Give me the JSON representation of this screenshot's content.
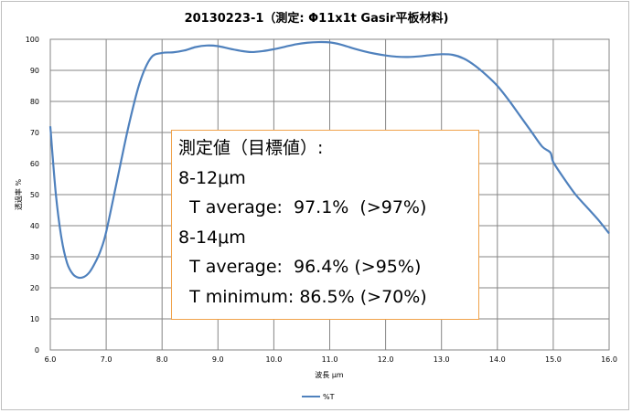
{
  "chart_data": {
    "type": "line",
    "title": "20130223-1（測定: Φ11x1t Gasir平板材料)",
    "xlabel": "波長   μm",
    "ylabel": "透過率   %",
    "xlim": [
      6.0,
      16.0
    ],
    "ylim": [
      0,
      100
    ],
    "x_ticks": [
      "6.0",
      "7.0",
      "8.0",
      "9.0",
      "10.0",
      "11.0",
      "12.0",
      "13.0",
      "14.0",
      "15.0",
      "16.0"
    ],
    "y_ticks": [
      "0",
      "10",
      "20",
      "30",
      "40",
      "50",
      "60",
      "70",
      "80",
      "90",
      "100"
    ],
    "grid": true,
    "legend_position": "bottom",
    "series": [
      {
        "name": "%T",
        "color": "#4f81bd",
        "points": [
          [
            6.0,
            72
          ],
          [
            6.1,
            50
          ],
          [
            6.2,
            36
          ],
          [
            6.3,
            28
          ],
          [
            6.4,
            24.5
          ],
          [
            6.5,
            23.3
          ],
          [
            6.6,
            23.5
          ],
          [
            6.7,
            25
          ],
          [
            6.8,
            28
          ],
          [
            6.9,
            32
          ],
          [
            7.0,
            38
          ],
          [
            7.2,
            55
          ],
          [
            7.4,
            72
          ],
          [
            7.6,
            86
          ],
          [
            7.8,
            94
          ],
          [
            8.0,
            95.6
          ],
          [
            8.2,
            95.8
          ],
          [
            8.4,
            96.4
          ],
          [
            8.6,
            97.5
          ],
          [
            8.8,
            98
          ],
          [
            9.0,
            97.8
          ],
          [
            9.2,
            97
          ],
          [
            9.4,
            96.3
          ],
          [
            9.6,
            95.9
          ],
          [
            9.8,
            96.2
          ],
          [
            10.0,
            96.8
          ],
          [
            10.2,
            97.6
          ],
          [
            10.4,
            98.4
          ],
          [
            10.6,
            98.9
          ],
          [
            10.8,
            99.1
          ],
          [
            11.0,
            99
          ],
          [
            11.2,
            98.3
          ],
          [
            11.4,
            97.2
          ],
          [
            11.6,
            96.2
          ],
          [
            11.8,
            95.4
          ],
          [
            12.0,
            94.8
          ],
          [
            12.2,
            94.4
          ],
          [
            12.4,
            94.3
          ],
          [
            12.6,
            94.5
          ],
          [
            12.8,
            94.9
          ],
          [
            13.0,
            95.2
          ],
          [
            13.2,
            95
          ],
          [
            13.4,
            93.8
          ],
          [
            13.6,
            91.5
          ],
          [
            13.8,
            88.5
          ],
          [
            14.0,
            85
          ],
          [
            14.2,
            80.5
          ],
          [
            14.4,
            75.5
          ],
          [
            14.6,
            70.5
          ],
          [
            14.8,
            65.5
          ],
          [
            14.95,
            63.5
          ],
          [
            15.0,
            60.5
          ],
          [
            15.2,
            55
          ],
          [
            15.4,
            50
          ],
          [
            15.6,
            46
          ],
          [
            15.8,
            42
          ],
          [
            16.0,
            37.5
          ]
        ]
      }
    ],
    "annotation": {
      "lines": [
        "測定値（目標値）:",
        "8-12μm",
        "  T average:  97.1%  (>97%)",
        "8-14μm",
        "  T average:  96.4% (>95%)",
        "  T minimum: 86.5% (>70%)"
      ],
      "border_color": "#f0a24a"
    }
  }
}
